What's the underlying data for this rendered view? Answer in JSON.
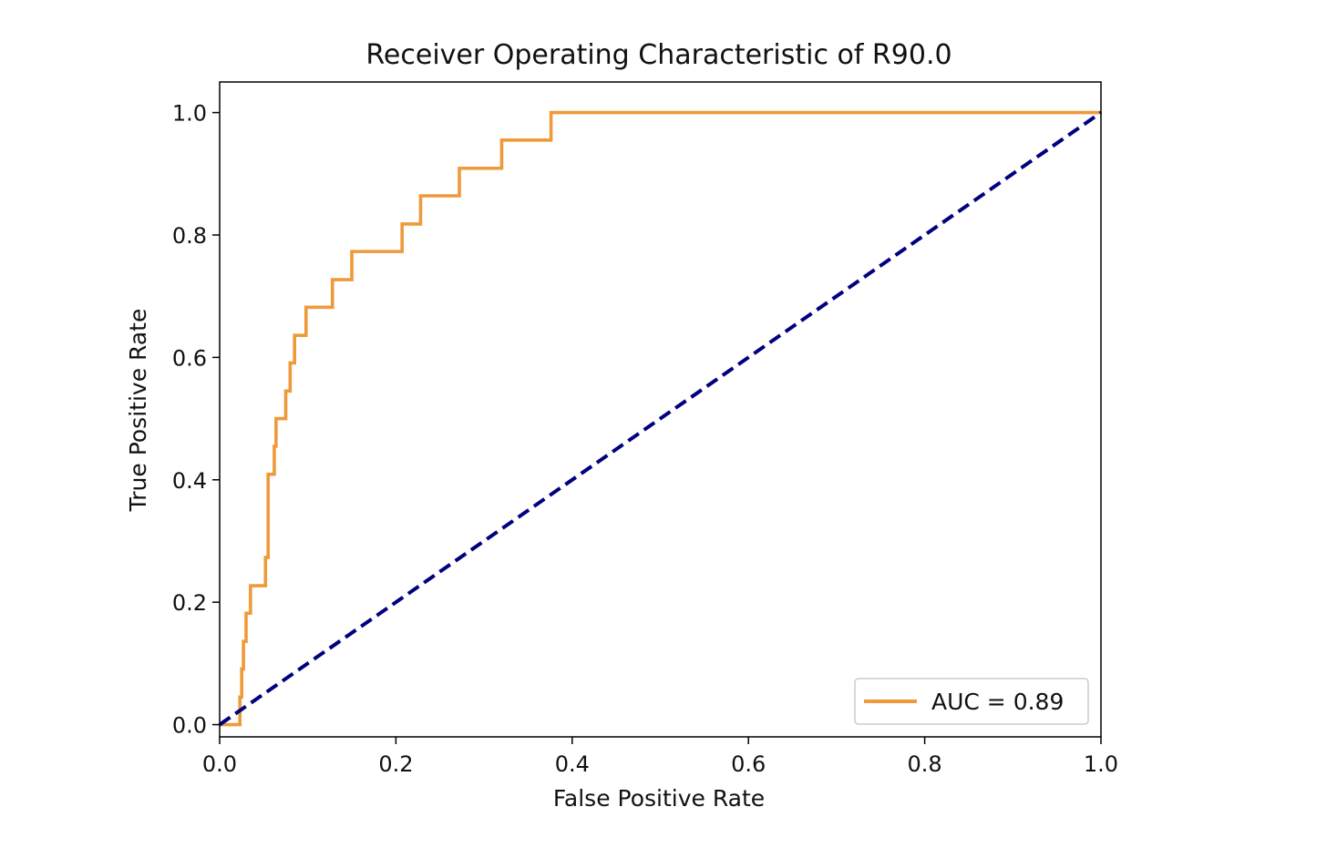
{
  "chart_data": {
    "type": "line",
    "title": "Receiver Operating Characteristic of R90.0",
    "xlabel": "False Positive Rate",
    "ylabel": "True Positive Rate",
    "xlim": [
      0.0,
      1.0
    ],
    "ylim": [
      -0.02,
      1.05
    ],
    "xticks": [
      0.0,
      0.2,
      0.4,
      0.6,
      0.8,
      1.0
    ],
    "xtick_labels": [
      "0.0",
      "0.2",
      "0.4",
      "0.6",
      "0.8",
      "1.0"
    ],
    "yticks": [
      0.0,
      0.2,
      0.4,
      0.6,
      0.8,
      1.0
    ],
    "ytick_labels": [
      "0.0",
      "0.2",
      "0.4",
      "0.6",
      "0.8",
      "1.0"
    ],
    "grid": false,
    "legend_position": "lower right",
    "series": [
      {
        "name": "AUC = 0.89",
        "color": "#ef9a3a",
        "style": "solid",
        "x": [
          0.0,
          0.023,
          0.023,
          0.025,
          0.025,
          0.027,
          0.027,
          0.03,
          0.03,
          0.035,
          0.035,
          0.04,
          0.04,
          0.052,
          0.052,
          0.055,
          0.055,
          0.062,
          0.062,
          0.064,
          0.064,
          0.075,
          0.075,
          0.08,
          0.08,
          0.085,
          0.085,
          0.098,
          0.098,
          0.128,
          0.128,
          0.15,
          0.15,
          0.207,
          0.207,
          0.228,
          0.228,
          0.272,
          0.272,
          0.32,
          0.32,
          0.376,
          0.376,
          1.0
        ],
        "y": [
          0.0,
          0.0,
          0.045,
          0.045,
          0.091,
          0.091,
          0.136,
          0.136,
          0.182,
          0.182,
          0.227,
          0.227,
          0.227,
          0.227,
          0.273,
          0.273,
          0.409,
          0.409,
          0.455,
          0.455,
          0.5,
          0.5,
          0.545,
          0.545,
          0.591,
          0.591,
          0.636,
          0.636,
          0.682,
          0.682,
          0.727,
          0.727,
          0.773,
          0.773,
          0.818,
          0.818,
          0.864,
          0.864,
          0.909,
          0.909,
          0.955,
          0.955,
          1.0,
          1.0
        ]
      },
      {
        "name": "",
        "color": "#00007f",
        "style": "dashed",
        "x": [
          0.0,
          1.0
        ],
        "y": [
          0.0,
          1.0
        ]
      }
    ]
  }
}
